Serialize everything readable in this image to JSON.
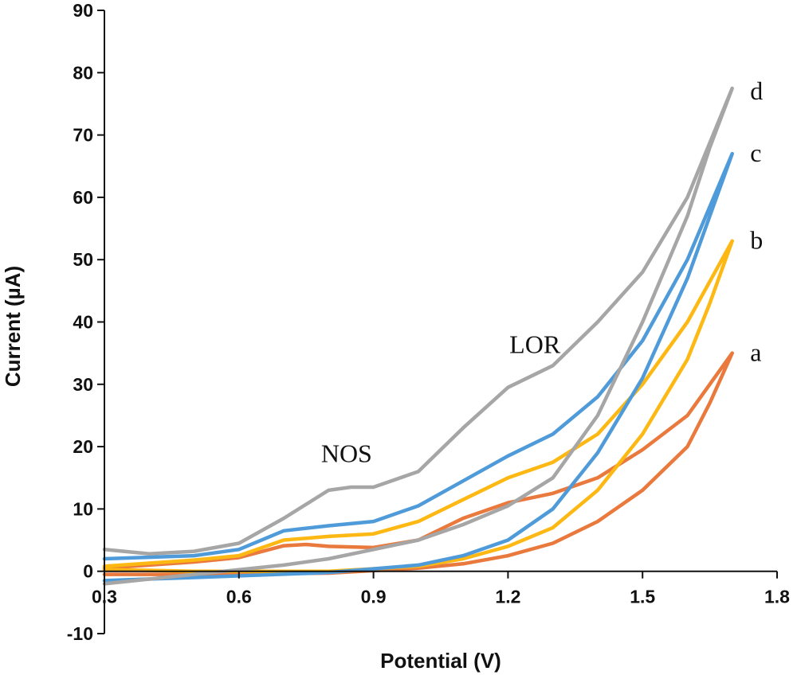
{
  "chart_data": {
    "type": "line",
    "title": "",
    "xlabel": "Potential (V)",
    "ylabel": "Current (µA)",
    "xlim": [
      0.3,
      1.8
    ],
    "ylim": [
      -10,
      90
    ],
    "x_ticks": [
      "0.3",
      "0.6",
      "0.9",
      "1.2",
      "1.5",
      "1.8"
    ],
    "y_ticks": [
      "-10",
      "0",
      "10",
      "20",
      "30",
      "40",
      "50",
      "60",
      "70",
      "80",
      "90"
    ],
    "grid": false,
    "legend": "none",
    "annotations": [
      {
        "text": "NOS",
        "x": 0.84,
        "y": 17.5
      },
      {
        "text": "LOR",
        "x": 1.26,
        "y": 35
      }
    ],
    "series": [
      {
        "name": "a",
        "color": "#e9793c",
        "label_position": {
          "x": 1.74,
          "y": 35
        },
        "forward": [
          [
            0.3,
            0.5
          ],
          [
            0.5,
            1.5
          ],
          [
            0.6,
            2.2
          ],
          [
            0.7,
            4.1
          ],
          [
            0.75,
            4.3
          ],
          [
            0.8,
            4.0
          ],
          [
            0.9,
            3.8
          ],
          [
            1.0,
            5.0
          ],
          [
            1.1,
            8.5
          ],
          [
            1.2,
            11.0
          ],
          [
            1.3,
            12.5
          ],
          [
            1.4,
            15.0
          ],
          [
            1.5,
            19.5
          ],
          [
            1.6,
            25.0
          ],
          [
            1.7,
            35.0
          ]
        ],
        "reverse": [
          [
            1.7,
            35.0
          ],
          [
            1.65,
            27.0
          ],
          [
            1.6,
            20.0
          ],
          [
            1.5,
            13.0
          ],
          [
            1.4,
            8.0
          ],
          [
            1.3,
            4.5
          ],
          [
            1.2,
            2.5
          ],
          [
            1.1,
            1.2
          ],
          [
            1.0,
            0.5
          ],
          [
            0.8,
            -0.3
          ],
          [
            0.5,
            -0.5
          ],
          [
            0.3,
            -0.5
          ]
        ]
      },
      {
        "name": "b",
        "color": "#fdb813",
        "label_position": {
          "x": 1.74,
          "y": 53
        },
        "forward": [
          [
            0.3,
            0.8
          ],
          [
            0.5,
            1.8
          ],
          [
            0.6,
            2.5
          ],
          [
            0.7,
            5.0
          ],
          [
            0.8,
            5.6
          ],
          [
            0.9,
            6.0
          ],
          [
            1.0,
            8.0
          ],
          [
            1.1,
            11.5
          ],
          [
            1.2,
            15.0
          ],
          [
            1.3,
            17.5
          ],
          [
            1.4,
            22.0
          ],
          [
            1.5,
            30.0
          ],
          [
            1.6,
            40.0
          ],
          [
            1.7,
            53.0
          ]
        ],
        "reverse": [
          [
            1.7,
            53.0
          ],
          [
            1.65,
            43.0
          ],
          [
            1.6,
            34.0
          ],
          [
            1.5,
            22.0
          ],
          [
            1.4,
            13.0
          ],
          [
            1.3,
            7.0
          ],
          [
            1.2,
            4.0
          ],
          [
            1.1,
            2.0
          ],
          [
            1.0,
            0.8
          ],
          [
            0.8,
            0.0
          ],
          [
            0.5,
            0.0
          ],
          [
            0.3,
            0.3
          ]
        ]
      },
      {
        "name": "c",
        "color": "#4f9bd9",
        "label_position": {
          "x": 1.74,
          "y": 67
        },
        "forward": [
          [
            0.3,
            2.0
          ],
          [
            0.5,
            2.5
          ],
          [
            0.6,
            3.5
          ],
          [
            0.7,
            6.5
          ],
          [
            0.8,
            7.3
          ],
          [
            0.9,
            8.0
          ],
          [
            1.0,
            10.5
          ],
          [
            1.1,
            14.5
          ],
          [
            1.2,
            18.5
          ],
          [
            1.3,
            22.0
          ],
          [
            1.4,
            28.0
          ],
          [
            1.5,
            37.0
          ],
          [
            1.6,
            50.0
          ],
          [
            1.7,
            67.0
          ]
        ],
        "reverse": [
          [
            1.7,
            67.0
          ],
          [
            1.65,
            57.0
          ],
          [
            1.6,
            47.0
          ],
          [
            1.5,
            31.0
          ],
          [
            1.4,
            19.0
          ],
          [
            1.3,
            10.0
          ],
          [
            1.2,
            5.0
          ],
          [
            1.1,
            2.5
          ],
          [
            1.0,
            1.0
          ],
          [
            0.8,
            -0.2
          ],
          [
            0.5,
            -1.0
          ],
          [
            0.3,
            -1.5
          ]
        ]
      },
      {
        "name": "d",
        "color": "#a6a6a6",
        "label_position": {
          "x": 1.74,
          "y": 77
        },
        "forward": [
          [
            0.3,
            3.5
          ],
          [
            0.4,
            2.8
          ],
          [
            0.5,
            3.2
          ],
          [
            0.6,
            4.5
          ],
          [
            0.7,
            8.5
          ],
          [
            0.8,
            13.0
          ],
          [
            0.85,
            13.5
          ],
          [
            0.9,
            13.5
          ],
          [
            1.0,
            16.0
          ],
          [
            1.1,
            23.0
          ],
          [
            1.2,
            29.5
          ],
          [
            1.3,
            33.0
          ],
          [
            1.4,
            40.0
          ],
          [
            1.5,
            48.0
          ],
          [
            1.6,
            60.0
          ],
          [
            1.7,
            77.5
          ]
        ],
        "reverse": [
          [
            1.7,
            77.5
          ],
          [
            1.65,
            68.0
          ],
          [
            1.6,
            57.0
          ],
          [
            1.5,
            40.0
          ],
          [
            1.4,
            25.0
          ],
          [
            1.3,
            15.0
          ],
          [
            1.2,
            10.5
          ],
          [
            1.1,
            7.5
          ],
          [
            1.0,
            5.0
          ],
          [
            0.9,
            3.5
          ],
          [
            0.8,
            2.0
          ],
          [
            0.7,
            1.0
          ],
          [
            0.5,
            -0.5
          ],
          [
            0.3,
            -2.0
          ]
        ]
      }
    ]
  }
}
